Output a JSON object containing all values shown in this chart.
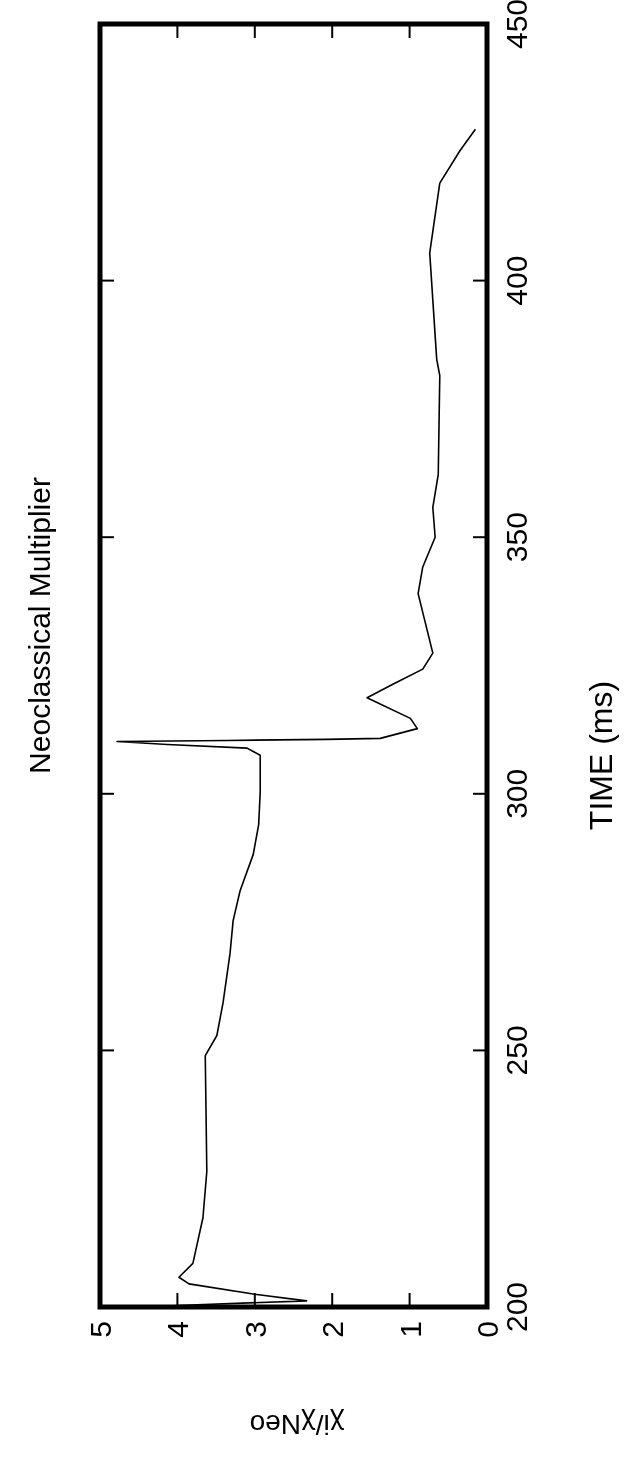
{
  "chart_data": {
    "type": "line",
    "title": "Neoclassical Multiplier",
    "xlabel": "χi/χNeo",
    "ylabel": "TIME (ms)",
    "xlim": [
      5,
      0
    ],
    "xticks": [
      5,
      4,
      3,
      2,
      1,
      0
    ],
    "ylim": [
      200,
      450
    ],
    "yticks": [
      200,
      250,
      300,
      350,
      400,
      450
    ],
    "grid": false,
    "series": [
      {
        "color": "#000000",
        "x": [
          4.26,
          4.0,
          2.33,
          3.0,
          3.85,
          3.98,
          3.8,
          3.67,
          3.62,
          3.64,
          3.49,
          3.41,
          3.32,
          3.28,
          3.19,
          3.02,
          2.95,
          2.93,
          2.93,
          3.1,
          4.13,
          4.78,
          3.36,
          2.07,
          1.38,
          0.9,
          0.99,
          1.55,
          1.21,
          0.83,
          0.7,
          0.89,
          0.83,
          0.67,
          0.7,
          0.63,
          0.61,
          0.65,
          0.74,
          0.61,
          0.35,
          0.15
        ],
        "values": [
          200,
          200.3,
          201.2,
          202.5,
          204.5,
          205.8,
          208.5,
          217.4,
          226.4,
          249,
          252.9,
          259.3,
          268.9,
          275.3,
          281.1,
          288.2,
          294,
          300.4,
          307.5,
          308.9,
          309.6,
          310.2,
          310.4,
          310.6,
          310.8,
          312.7,
          314.7,
          318.7,
          321.4,
          324.3,
          327.4,
          339,
          344.2,
          350,
          355.8,
          362.2,
          381.5,
          384.7,
          405.4,
          419,
          425.3,
          429.5
        ]
      }
    ]
  }
}
